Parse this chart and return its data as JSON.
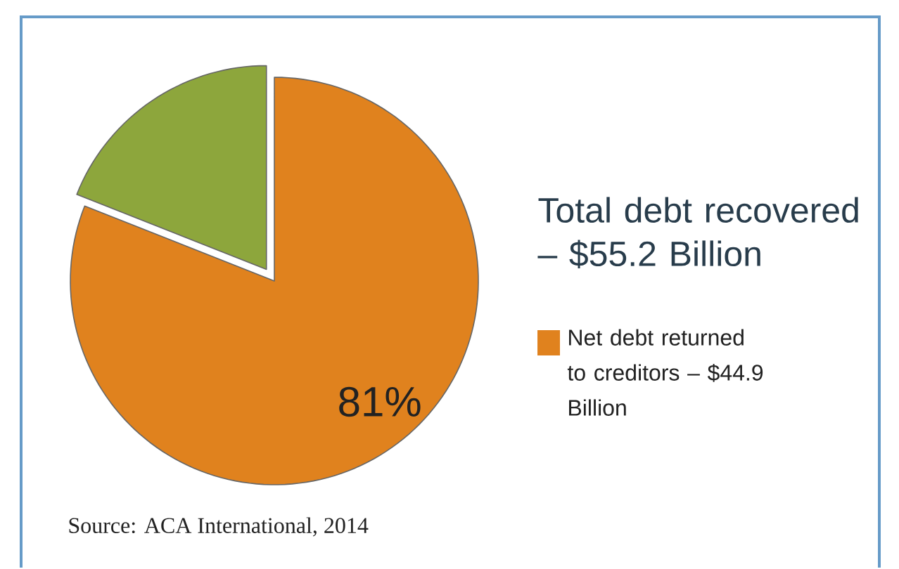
{
  "chart_data": {
    "type": "pie",
    "title": "Total debt recovered – $55.2 Billion",
    "categories": [
      "Net debt returned to creditors – $44.9 Billion",
      null
    ],
    "values": [
      81,
      19
    ],
    "colors": [
      "#e0821e",
      "#8da63c"
    ],
    "value_labels": [
      "81%",
      null
    ],
    "legend": "right",
    "annotations": [
      "Source:  ACA International, 2014"
    ]
  }
}
